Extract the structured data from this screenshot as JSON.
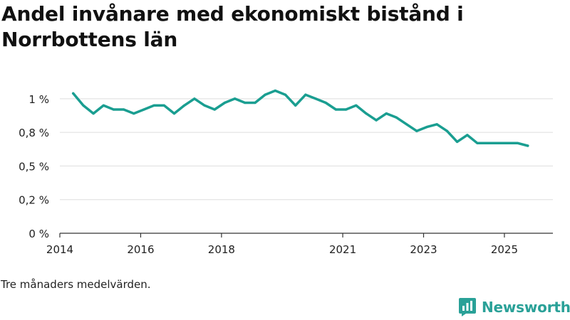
{
  "title": "Andel invånare med ekonomiskt bistånd i Norrbottens län",
  "note": "Tre månaders medelvärden.",
  "brand": {
    "name": "Newsworthy",
    "icon": "newsworthy-logo-icon"
  },
  "colors": {
    "line": "#1a9e91",
    "grid": "#dddddd",
    "axis": "#333333",
    "brand": "#2aa198"
  },
  "chart_data": {
    "type": "line",
    "title": "Andel invånare med ekonomiskt bistånd i Norrbottens län",
    "xlabel": "",
    "ylabel": "",
    "ylim": [
      0,
      1.2
    ],
    "xlim": [
      2014,
      2026.2
    ],
    "y_ticks": [
      {
        "value": 0,
        "label": "0 %"
      },
      {
        "value": 0.25,
        "label": "0,2 %"
      },
      {
        "value": 0.5,
        "label": "0,5 %"
      },
      {
        "value": 0.75,
        "label": "0,8 %"
      },
      {
        "value": 1.0,
        "label": "1 %"
      }
    ],
    "x_ticks": [
      {
        "value": 2014,
        "label": "2014"
      },
      {
        "value": 2016,
        "label": "2016"
      },
      {
        "value": 2018,
        "label": "2018"
      },
      {
        "value": 2021,
        "label": "2021"
      },
      {
        "value": 2023,
        "label": "2023"
      },
      {
        "value": 2025,
        "label": "2025"
      }
    ],
    "grid": true,
    "series": [
      {
        "name": "Andel invånare med ekonomiskt bistånd",
        "x": [
          2014.33,
          2014.58,
          2014.83,
          2015.08,
          2015.33,
          2015.58,
          2015.83,
          2016.08,
          2016.33,
          2016.58,
          2016.83,
          2017.08,
          2017.33,
          2017.58,
          2017.83,
          2018.08,
          2018.33,
          2018.58,
          2018.83,
          2019.08,
          2019.33,
          2019.58,
          2019.83,
          2020.08,
          2020.33,
          2020.58,
          2020.83,
          2021.08,
          2021.33,
          2021.58,
          2021.83,
          2022.08,
          2022.33,
          2022.58,
          2022.83,
          2023.08,
          2023.33,
          2023.58,
          2023.83,
          2024.08,
          2024.33,
          2024.58,
          2024.83,
          2025.08,
          2025.33,
          2025.58
        ],
        "values": [
          1.04,
          0.95,
          0.89,
          0.95,
          0.92,
          0.92,
          0.89,
          0.92,
          0.95,
          0.95,
          0.89,
          0.95,
          1.0,
          0.95,
          0.92,
          0.97,
          1.0,
          0.97,
          0.97,
          1.03,
          1.06,
          1.03,
          0.95,
          1.03,
          1.0,
          0.97,
          0.92,
          0.92,
          0.95,
          0.89,
          0.84,
          0.89,
          0.86,
          0.81,
          0.76,
          0.79,
          0.81,
          0.76,
          0.68,
          0.73,
          0.67,
          0.67,
          0.67,
          0.67,
          0.67,
          0.65
        ]
      }
    ]
  }
}
